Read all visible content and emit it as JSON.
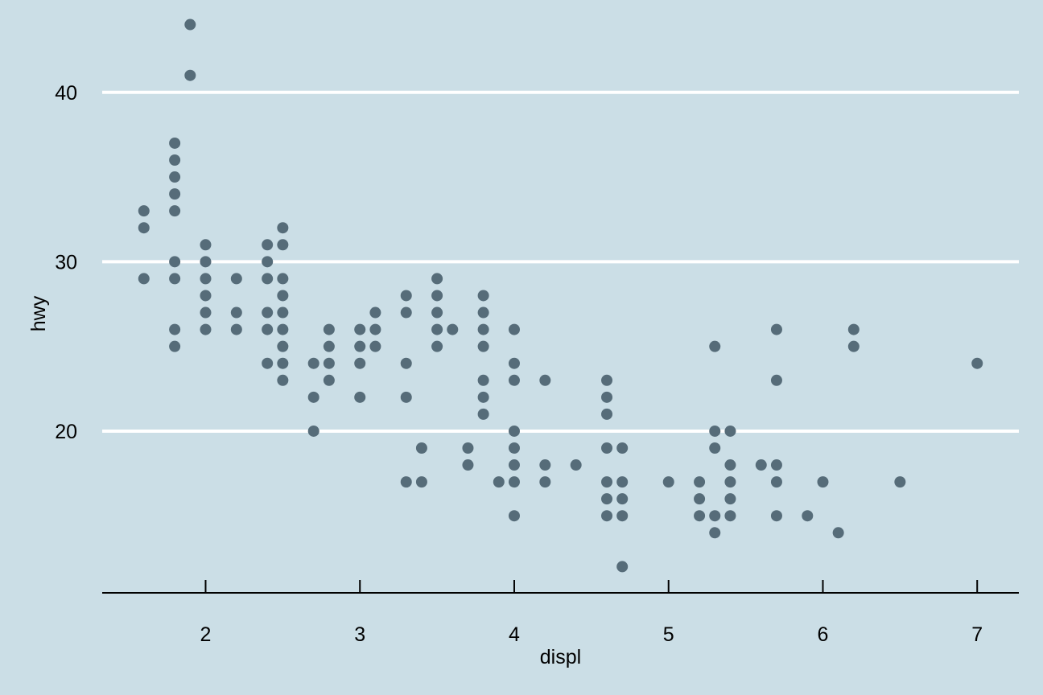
{
  "colors": {
    "background": "#cbdee6",
    "gridline": "#ffffff",
    "point": "#566c79",
    "axis_line": "#000000",
    "text": "#000000"
  },
  "chart_data": {
    "type": "scatter",
    "title": "",
    "xlabel": "displ",
    "ylabel": "hwy",
    "xlim": [
      1.33,
      7.27
    ],
    "ylim": [
      10.5,
      44.5
    ],
    "x_ticks": [
      2,
      3,
      4,
      5,
      6,
      7
    ],
    "y_ticks": [
      20,
      30,
      40
    ],
    "x_tick_labels": [
      "2",
      "3",
      "4",
      "5",
      "6",
      "7"
    ],
    "y_tick_labels": [
      "20",
      "30",
      "40"
    ],
    "grid": "horizontal major",
    "legend": "none",
    "points": [
      {
        "x": 1.6,
        "y": 33
      },
      {
        "x": 1.6,
        "y": 32
      },
      {
        "x": 1.6,
        "y": 29
      },
      {
        "x": 1.8,
        "y": 37
      },
      {
        "x": 1.8,
        "y": 36
      },
      {
        "x": 1.8,
        "y": 35
      },
      {
        "x": 1.8,
        "y": 34
      },
      {
        "x": 1.8,
        "y": 33
      },
      {
        "x": 1.8,
        "y": 30
      },
      {
        "x": 1.8,
        "y": 29
      },
      {
        "x": 1.8,
        "y": 26
      },
      {
        "x": 1.8,
        "y": 25
      },
      {
        "x": 1.9,
        "y": 44
      },
      {
        "x": 1.9,
        "y": 41
      },
      {
        "x": 2.0,
        "y": 31
      },
      {
        "x": 2.0,
        "y": 30
      },
      {
        "x": 2.0,
        "y": 29
      },
      {
        "x": 2.0,
        "y": 28
      },
      {
        "x": 2.0,
        "y": 27
      },
      {
        "x": 2.0,
        "y": 26
      },
      {
        "x": 2.2,
        "y": 29
      },
      {
        "x": 2.2,
        "y": 27
      },
      {
        "x": 2.2,
        "y": 26
      },
      {
        "x": 2.4,
        "y": 31
      },
      {
        "x": 2.4,
        "y": 30
      },
      {
        "x": 2.4,
        "y": 29
      },
      {
        "x": 2.4,
        "y": 27
      },
      {
        "x": 2.4,
        "y": 26
      },
      {
        "x": 2.4,
        "y": 24
      },
      {
        "x": 2.5,
        "y": 32
      },
      {
        "x": 2.5,
        "y": 31
      },
      {
        "x": 2.5,
        "y": 29
      },
      {
        "x": 2.5,
        "y": 28
      },
      {
        "x": 2.5,
        "y": 27
      },
      {
        "x": 2.5,
        "y": 26
      },
      {
        "x": 2.5,
        "y": 25
      },
      {
        "x": 2.5,
        "y": 24
      },
      {
        "x": 2.5,
        "y": 23
      },
      {
        "x": 2.7,
        "y": 24
      },
      {
        "x": 2.7,
        "y": 22
      },
      {
        "x": 2.7,
        "y": 20
      },
      {
        "x": 2.8,
        "y": 26
      },
      {
        "x": 2.8,
        "y": 25
      },
      {
        "x": 2.8,
        "y": 24
      },
      {
        "x": 2.8,
        "y": 23
      },
      {
        "x": 3.0,
        "y": 26
      },
      {
        "x": 3.0,
        "y": 25
      },
      {
        "x": 3.0,
        "y": 24
      },
      {
        "x": 3.0,
        "y": 22
      },
      {
        "x": 3.1,
        "y": 27
      },
      {
        "x": 3.1,
        "y": 26
      },
      {
        "x": 3.1,
        "y": 25
      },
      {
        "x": 3.3,
        "y": 28
      },
      {
        "x": 3.3,
        "y": 27
      },
      {
        "x": 3.3,
        "y": 24
      },
      {
        "x": 3.3,
        "y": 22
      },
      {
        "x": 3.3,
        "y": 17
      },
      {
        "x": 3.4,
        "y": 19
      },
      {
        "x": 3.4,
        "y": 17
      },
      {
        "x": 3.5,
        "y": 29
      },
      {
        "x": 3.5,
        "y": 28
      },
      {
        "x": 3.5,
        "y": 27
      },
      {
        "x": 3.5,
        "y": 26
      },
      {
        "x": 3.5,
        "y": 25
      },
      {
        "x": 3.6,
        "y": 26
      },
      {
        "x": 3.7,
        "y": 19
      },
      {
        "x": 3.7,
        "y": 18
      },
      {
        "x": 3.8,
        "y": 28
      },
      {
        "x": 3.8,
        "y": 27
      },
      {
        "x": 3.8,
        "y": 26
      },
      {
        "x": 3.8,
        "y": 25
      },
      {
        "x": 3.8,
        "y": 23
      },
      {
        "x": 3.8,
        "y": 22
      },
      {
        "x": 3.8,
        "y": 21
      },
      {
        "x": 3.9,
        "y": 17
      },
      {
        "x": 4.0,
        "y": 26
      },
      {
        "x": 4.0,
        "y": 24
      },
      {
        "x": 4.0,
        "y": 23
      },
      {
        "x": 4.0,
        "y": 20
      },
      {
        "x": 4.0,
        "y": 19
      },
      {
        "x": 4.0,
        "y": 18
      },
      {
        "x": 4.0,
        "y": 17
      },
      {
        "x": 4.0,
        "y": 15
      },
      {
        "x": 4.2,
        "y": 23
      },
      {
        "x": 4.2,
        "y": 18
      },
      {
        "x": 4.2,
        "y": 17
      },
      {
        "x": 4.4,
        "y": 18
      },
      {
        "x": 4.6,
        "y": 23
      },
      {
        "x": 4.6,
        "y": 22
      },
      {
        "x": 4.6,
        "y": 21
      },
      {
        "x": 4.6,
        "y": 19
      },
      {
        "x": 4.6,
        "y": 17
      },
      {
        "x": 4.6,
        "y": 16
      },
      {
        "x": 4.6,
        "y": 15
      },
      {
        "x": 4.7,
        "y": 19
      },
      {
        "x": 4.7,
        "y": 17
      },
      {
        "x": 4.7,
        "y": 16
      },
      {
        "x": 4.7,
        "y": 15
      },
      {
        "x": 4.7,
        "y": 12
      },
      {
        "x": 5.0,
        "y": 17
      },
      {
        "x": 5.2,
        "y": 17
      },
      {
        "x": 5.2,
        "y": 16
      },
      {
        "x": 5.2,
        "y": 15
      },
      {
        "x": 5.3,
        "y": 25
      },
      {
        "x": 5.3,
        "y": 20
      },
      {
        "x": 5.3,
        "y": 19
      },
      {
        "x": 5.3,
        "y": 15
      },
      {
        "x": 5.3,
        "y": 14
      },
      {
        "x": 5.4,
        "y": 20
      },
      {
        "x": 5.4,
        "y": 18
      },
      {
        "x": 5.4,
        "y": 17
      },
      {
        "x": 5.4,
        "y": 16
      },
      {
        "x": 5.4,
        "y": 15
      },
      {
        "x": 5.6,
        "y": 18
      },
      {
        "x": 5.7,
        "y": 26
      },
      {
        "x": 5.7,
        "y": 23
      },
      {
        "x": 5.7,
        "y": 18
      },
      {
        "x": 5.7,
        "y": 17
      },
      {
        "x": 5.7,
        "y": 15
      },
      {
        "x": 5.9,
        "y": 15
      },
      {
        "x": 6.0,
        "y": 17
      },
      {
        "x": 6.1,
        "y": 14
      },
      {
        "x": 6.2,
        "y": 26
      },
      {
        "x": 6.2,
        "y": 25
      },
      {
        "x": 6.5,
        "y": 17
      },
      {
        "x": 7.0,
        "y": 24
      }
    ]
  }
}
